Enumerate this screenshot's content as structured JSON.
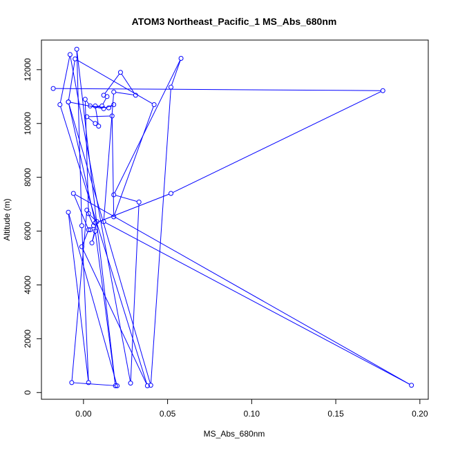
{
  "chart_data": {
    "type": "line",
    "title": "ATOM3 Northeast_Pacific_1 MS_Abs_680nm",
    "xlabel": "MS_Abs_680nm",
    "ylabel": "Altitude (m)",
    "xlim": [
      -0.025,
      0.205
    ],
    "ylim": [
      -250,
      13100
    ],
    "xticks": [
      0.0,
      0.05,
      0.1,
      0.15,
      0.2
    ],
    "xtick_labels": [
      "0.00",
      "0.05",
      "0.10",
      "0.15",
      "0.20"
    ],
    "yticks": [
      0,
      2000,
      4000,
      6000,
      8000,
      10000,
      12000
    ],
    "ytick_labels": [
      "0",
      "2000",
      "4000",
      "6000",
      "8000",
      "10000",
      "12000"
    ],
    "grid": false,
    "series": [
      {
        "color": "#0000ff",
        "marker": "open-circle",
        "x": [
          -0.018,
          0.178,
          0.052,
          0.007,
          -0.009,
          0.04,
          0.052,
          0.058,
          0.018,
          0.033,
          0.028,
          -0.008,
          -0.014,
          0.038,
          -0.001,
          0.003,
          -0.006,
          0.195,
          0.012,
          0.018,
          0.031,
          0.022,
          0.012,
          0.014,
          0.011,
          0.007,
          0.009,
          0.007,
          0.002,
          0.017,
          0.018,
          0.042,
          -0.005,
          -0.009,
          0.012,
          0.018,
          0.015,
          0.004,
          0.001,
          0.003,
          0.008,
          0.005,
          0.007,
          0.019,
          -0.004,
          -0.001,
          0.003,
          -0.009,
          0.02,
          -0.007,
          0.002,
          0.006,
          0.004
        ],
        "y": [
          11300,
          11220,
          7400,
          6300,
          10800,
          270,
          11350,
          12420,
          7350,
          7080,
          350,
          12560,
          10700,
          250,
          5420,
          6050,
          7400,
          270,
          6350,
          11170,
          11050,
          11900,
          11050,
          11000,
          10650,
          10650,
          9900,
          10000,
          10250,
          10280,
          6530,
          10700,
          12400,
          10800,
          10550,
          10700,
          10580,
          10650,
          10900,
          6650,
          6350,
          5560,
          6000,
          250,
          12760,
          6200,
          370,
          6700,
          250,
          370,
          6780,
          6200,
          6050
        ]
      }
    ]
  }
}
